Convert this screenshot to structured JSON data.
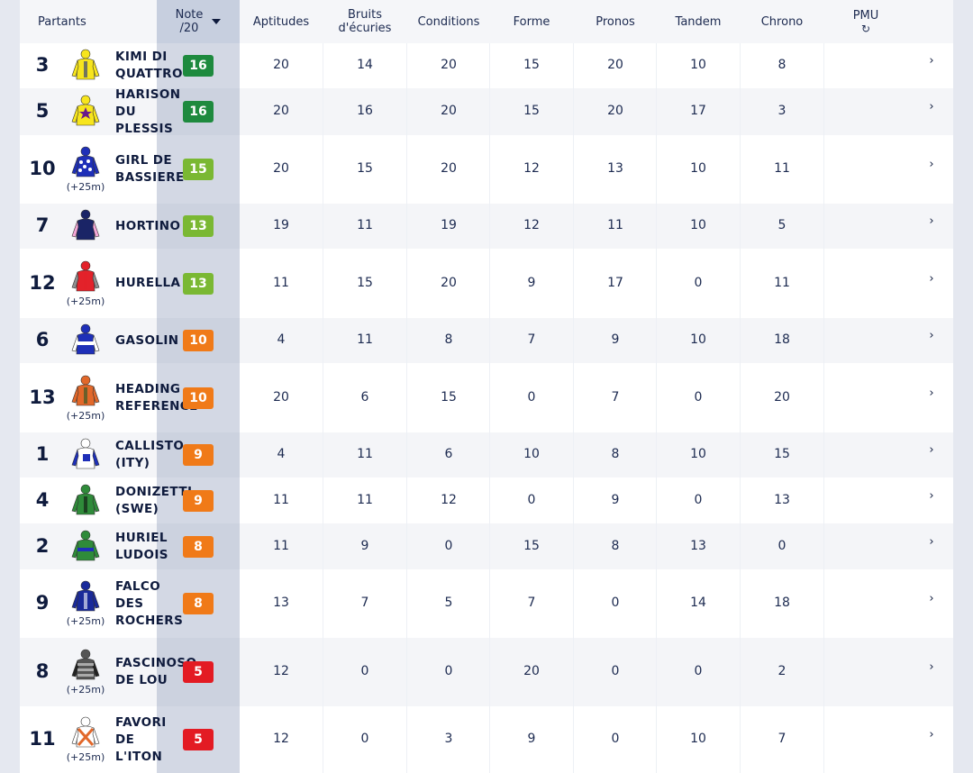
{
  "headers": {
    "partants": "Partants",
    "note_line1": "Note",
    "note_line2": "/20",
    "aptitudes": "Aptitudes",
    "bruits_line1": "Bruits",
    "bruits_line2": "d'écuries",
    "conditions": "Conditions",
    "forme": "Forme",
    "pronos": "Pronos",
    "tandem": "Tandem",
    "chrono": "Chrono",
    "pmu": "PMU",
    "pmu_icon": "refresh-icon"
  },
  "colors": {
    "note_16": "#1e8a3e",
    "note_15": "#7ab833",
    "note_13": "#7ab833",
    "note_10": "#f07a18",
    "note_9": "#f07a18",
    "note_8": "#f07a18",
    "note_5": "#e31b23"
  },
  "rows": [
    {
      "num": "3",
      "name_lines": [
        "KIMI DI",
        "QUATTRO"
      ],
      "dist": "",
      "note": "16",
      "aptitudes": "20",
      "bruits": "14",
      "conditions": "20",
      "forme": "15",
      "pronos": "20",
      "tandem": "10",
      "chrono": "8",
      "pmu": "",
      "silk": "yellow-silk-icon"
    },
    {
      "num": "5",
      "name_lines": [
        "HARISON",
        "DU",
        "PLESSIS"
      ],
      "dist": "",
      "note": "16",
      "aptitudes": "20",
      "bruits": "16",
      "conditions": "20",
      "forme": "15",
      "pronos": "20",
      "tandem": "17",
      "chrono": "3",
      "pmu": "",
      "silk": "yellow-star-silk-icon"
    },
    {
      "num": "10",
      "name_lines": [
        "GIRL DE",
        "BASSIERE"
      ],
      "dist": "(+25m)",
      "note": "15",
      "aptitudes": "20",
      "bruits": "15",
      "conditions": "20",
      "forme": "12",
      "pronos": "13",
      "tandem": "10",
      "chrono": "11",
      "pmu": "",
      "silk": "blue-dots-silk-icon"
    },
    {
      "num": "7",
      "name_lines": [
        "HORTINO"
      ],
      "dist": "",
      "note": "13",
      "aptitudes": "19",
      "bruits": "11",
      "conditions": "19",
      "forme": "12",
      "pronos": "11",
      "tandem": "10",
      "chrono": "5",
      "pmu": "",
      "silk": "navy-pink-silk-icon"
    },
    {
      "num": "12",
      "name_lines": [
        "HURELLA"
      ],
      "dist": "(+25m)",
      "note": "13",
      "aptitudes": "11",
      "bruits": "15",
      "conditions": "20",
      "forme": "9",
      "pronos": "17",
      "tandem": "0",
      "chrono": "11",
      "pmu": "",
      "silk": "red-grey-silk-icon"
    },
    {
      "num": "6",
      "name_lines": [
        "GASOLIN"
      ],
      "dist": "",
      "note": "10",
      "aptitudes": "4",
      "bruits": "11",
      "conditions": "8",
      "forme": "7",
      "pronos": "9",
      "tandem": "10",
      "chrono": "18",
      "pmu": "",
      "silk": "blue-white-silk-icon"
    },
    {
      "num": "13",
      "name_lines": [
        "HEADING",
        "REFERENCE"
      ],
      "dist": "(+25m)",
      "note": "10",
      "aptitudes": "20",
      "bruits": "6",
      "conditions": "15",
      "forme": "0",
      "pronos": "7",
      "tandem": "0",
      "chrono": "20",
      "pmu": "",
      "silk": "orange-silk-icon"
    },
    {
      "num": "1",
      "name_lines": [
        "CALLISTO",
        "(ITY)"
      ],
      "dist": "",
      "note": "9",
      "aptitudes": "4",
      "bruits": "11",
      "conditions": "6",
      "forme": "10",
      "pronos": "8",
      "tandem": "10",
      "chrono": "15",
      "pmu": "",
      "silk": "white-blue-silk-icon"
    },
    {
      "num": "4",
      "name_lines": [
        "DONIZETTI",
        "(SWE)"
      ],
      "dist": "",
      "note": "9",
      "aptitudes": "11",
      "bruits": "11",
      "conditions": "12",
      "forme": "0",
      "pronos": "9",
      "tandem": "0",
      "chrono": "13",
      "pmu": "",
      "silk": "green-black-silk-icon"
    },
    {
      "num": "2",
      "name_lines": [
        "HURIEL",
        "LUDOIS"
      ],
      "dist": "",
      "note": "8",
      "aptitudes": "11",
      "bruits": "9",
      "conditions": "0",
      "forme": "15",
      "pronos": "8",
      "tandem": "13",
      "chrono": "0",
      "pmu": "",
      "silk": "green-blue-silk-icon"
    },
    {
      "num": "9",
      "name_lines": [
        "FALCO",
        "DES",
        "ROCHERS"
      ],
      "dist": "(+25m)",
      "note": "8",
      "aptitudes": "13",
      "bruits": "7",
      "conditions": "5",
      "forme": "7",
      "pronos": "0",
      "tandem": "14",
      "chrono": "18",
      "pmu": "",
      "silk": "navy-silk-icon"
    },
    {
      "num": "8",
      "name_lines": [
        "FASCINOSO",
        "DE LOU"
      ],
      "dist": "(+25m)",
      "note": "5",
      "aptitudes": "12",
      "bruits": "0",
      "conditions": "0",
      "forme": "20",
      "pronos": "0",
      "tandem": "0",
      "chrono": "2",
      "pmu": "",
      "silk": "grey-stripes-silk-icon"
    },
    {
      "num": "11",
      "name_lines": [
        "FAVORI",
        "DE",
        "L'ITON"
      ],
      "dist": "(+25m)",
      "note": "5",
      "aptitudes": "12",
      "bruits": "0",
      "conditions": "3",
      "forme": "9",
      "pronos": "0",
      "tandem": "10",
      "chrono": "7",
      "pmu": "",
      "silk": "white-orange-cross-silk-icon"
    }
  ],
  "chevron": "›"
}
